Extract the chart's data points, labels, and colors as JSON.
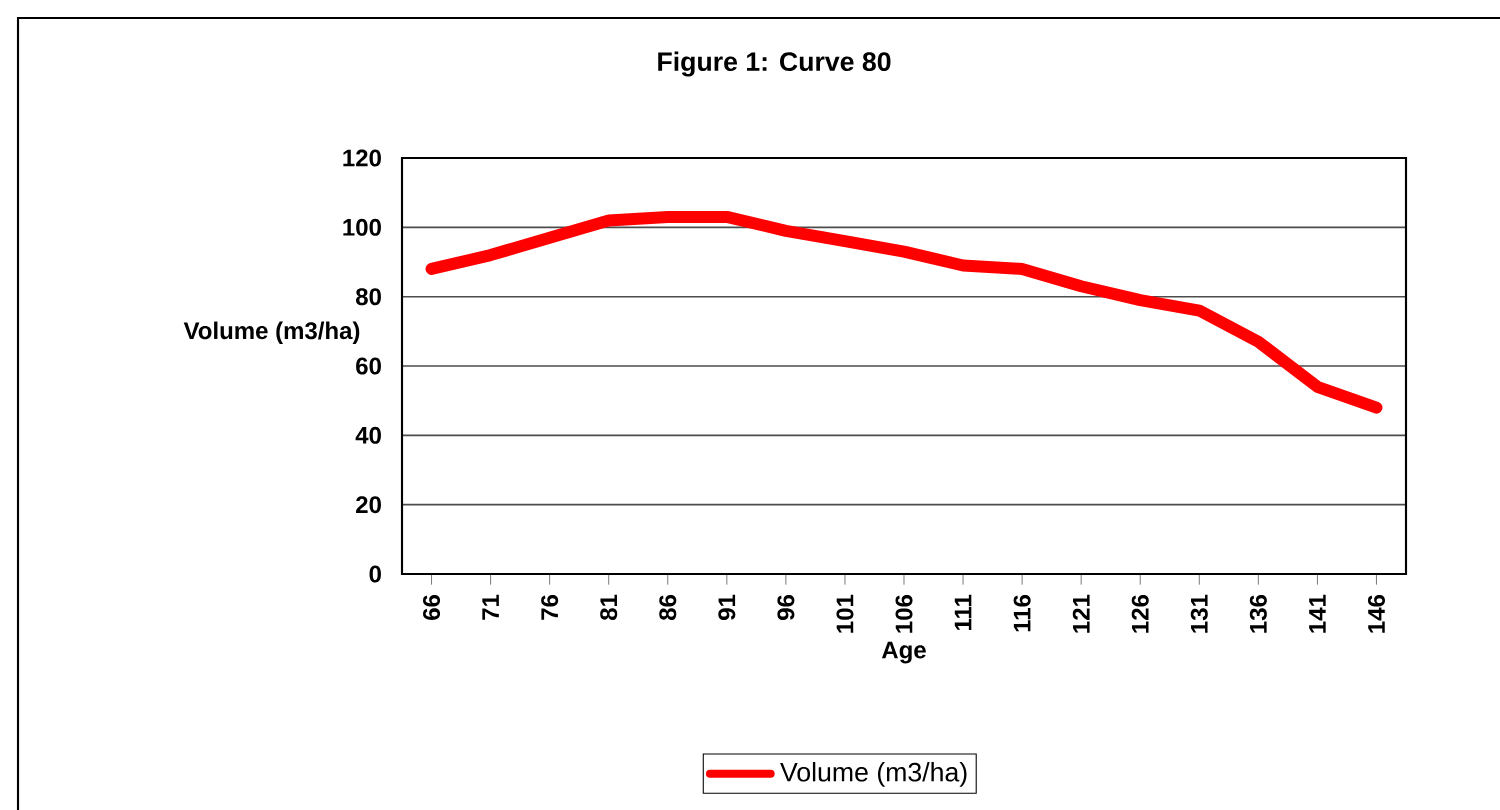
{
  "chart_data": {
    "type": "line",
    "title": "Figure 1: Curve 80",
    "xlabel": "Age",
    "ylabel": "Volume (m3/ha)",
    "categories": [
      "66",
      "71",
      "76",
      "81",
      "86",
      "91",
      "96",
      "101",
      "106",
      "111",
      "116",
      "121",
      "126",
      "131",
      "136",
      "141",
      "146"
    ],
    "series": [
      {
        "name": "Volume (m3/ha)",
        "color": "#ff0000",
        "values": [
          88,
          92,
          97,
          102,
          103,
          103,
          99,
          96,
          93,
          89,
          88,
          83,
          79,
          76,
          67,
          54,
          48
        ]
      }
    ],
    "ylim": [
      0,
      120
    ],
    "yticks": [
      0,
      20,
      40,
      60,
      80,
      100,
      120
    ],
    "grid": "y",
    "legend": "bottom",
    "marker": "none",
    "line_style": "solid"
  }
}
